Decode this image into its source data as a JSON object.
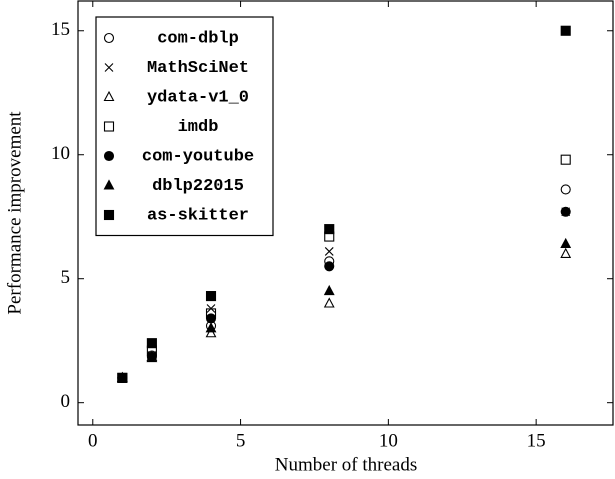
{
  "chart_data": {
    "type": "scatter",
    "xlabel": "Number of threads",
    "ylabel": "Performance improvement",
    "xlim": [
      -0.5,
      17.6
    ],
    "ylim": [
      -0.9,
      16.2
    ],
    "xticks": [
      0,
      5,
      10,
      15
    ],
    "yticks": [
      0,
      5,
      10,
      15
    ],
    "legend": "upper left",
    "series": [
      {
        "name": "com-dblp",
        "marker": "circle",
        "filled": false,
        "color": "#000000",
        "x": [
          1,
          2,
          4,
          8,
          16
        ],
        "values": [
          1,
          1.9,
          3.1,
          5.7,
          8.6
        ]
      },
      {
        "name": "MathSciNet",
        "marker": "x",
        "filled": false,
        "color": "#000000",
        "x": [
          1,
          2,
          4,
          8,
          16
        ],
        "values": [
          1,
          1.9,
          3.8,
          6.1,
          7.7
        ]
      },
      {
        "name": "ydata-v1_0",
        "marker": "triangle",
        "filled": false,
        "color": "#000000",
        "x": [
          1,
          2,
          4,
          8,
          16
        ],
        "values": [
          1,
          1.8,
          2.8,
          4.0,
          6.0
        ]
      },
      {
        "name": "imdb",
        "marker": "square",
        "filled": false,
        "color": "#000000",
        "x": [
          1,
          2,
          4,
          8,
          16
        ],
        "values": [
          1,
          2.1,
          3.6,
          6.7,
          9.8
        ]
      },
      {
        "name": "com-youtube",
        "marker": "circle",
        "filled": true,
        "color": "#000000",
        "x": [
          1,
          2,
          4,
          8,
          16
        ],
        "values": [
          1,
          1.85,
          3.4,
          5.5,
          7.7
        ]
      },
      {
        "name": "dblp22015",
        "marker": "triangle",
        "filled": true,
        "color": "#000000",
        "x": [
          1,
          2,
          4,
          8,
          16
        ],
        "values": [
          1,
          1.85,
          3.0,
          4.5,
          6.4
        ]
      },
      {
        "name": "as-skitter",
        "marker": "square",
        "filled": true,
        "color": "#000000",
        "x": [
          1,
          2,
          4,
          8,
          16
        ],
        "values": [
          1,
          2.4,
          4.3,
          7.0,
          15.0
        ]
      }
    ]
  }
}
